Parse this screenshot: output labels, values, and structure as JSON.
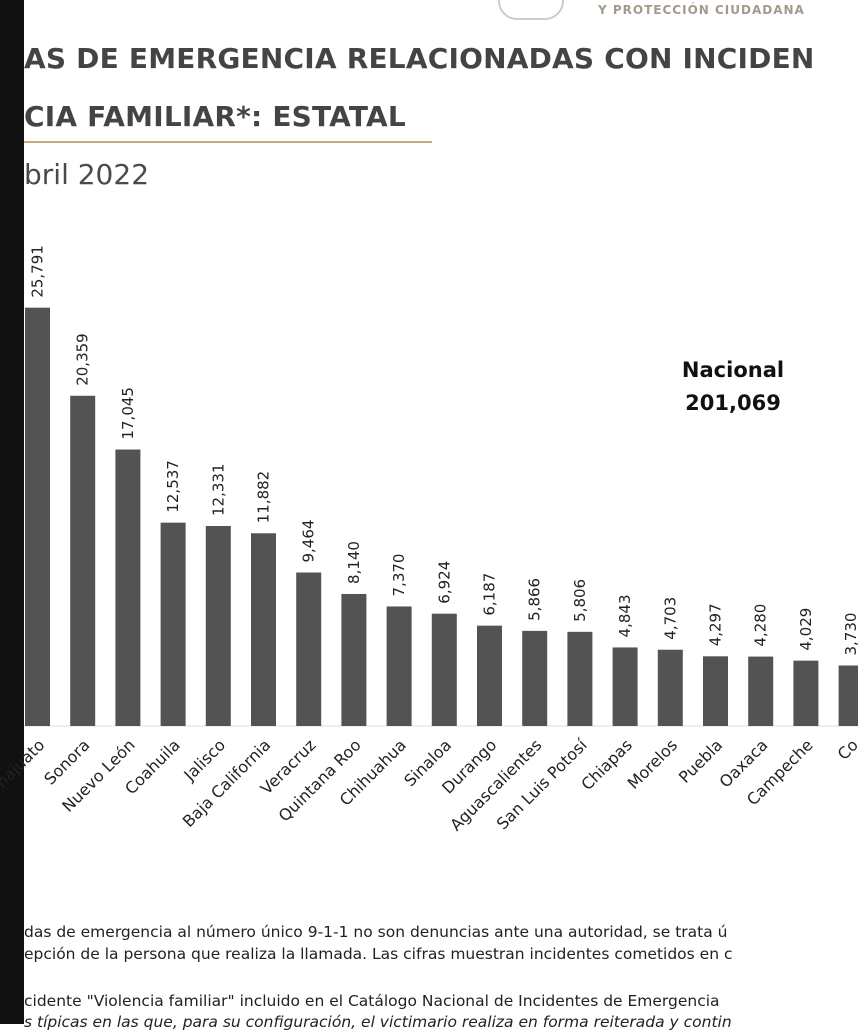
{
  "header": {
    "agency_line": "Y PROTECCIÓN CIUDADANA",
    "title_line1": "AS DE EMERGENCIA RELACIONADAS CON INCIDEN",
    "title_line2": "CIA FAMILIAR*: ESTATAL",
    "subtitle": "bril 2022"
  },
  "national": {
    "label": "Nacional",
    "value": "201,069"
  },
  "chart_data": {
    "type": "bar",
    "title": "LLAMADAS DE EMERGENCIA RELACIONADAS CON INCIDENTES DE VIOLENCIA FAMILIAR*: ESTATAL",
    "categories": [
      "najuato",
      "Sonora",
      "Nuevo León",
      "Coahuila",
      "Jalisco",
      "Baja California",
      "Veracruz",
      "Quintana Roo",
      "Chihuahua",
      "Sinaloa",
      "Durango",
      "Aguascalientes",
      "San Luis Potosí",
      "Chiapas",
      "Morelos",
      "Puebla",
      "Oaxaca",
      "Campeche",
      "Co"
    ],
    "values": [
      25791,
      20359,
      17045,
      12537,
      12331,
      11882,
      9464,
      8140,
      7370,
      6924,
      6187,
      5866,
      5806,
      4843,
      4703,
      4297,
      4280,
      4029,
      3730
    ],
    "labels": [
      "25,791",
      "20,359",
      "17,045",
      "12,537",
      "12,331",
      "11,882",
      "9,464",
      "8,140",
      "7,370",
      "6,924",
      "6,187",
      "5,866",
      "5,806",
      "4,843",
      "4,703",
      "4,297",
      "4,280",
      "4,029",
      "3,730"
    ],
    "xlabel": "",
    "ylabel": "",
    "ylim": [
      0,
      28000
    ],
    "bar_color": "#535353"
  },
  "notes": {
    "line1": "das de emergencia al número único 9-1-1 no son denuncias ante una autoridad, se trata ú",
    "line2": "epción de la persona que realiza la llamada. Las cifras muestran incidentes cometidos en c",
    "line3": "cidente \"Violencia familiar\" incluido en el Catálogo Nacional de Incidentes de Emergencia",
    "line4": "s típicas en las que, para su configuración, el victimario realiza en forma reiterada y contin"
  }
}
